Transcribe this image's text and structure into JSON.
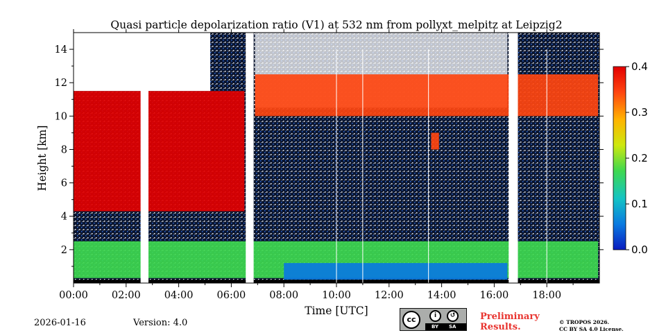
{
  "chart_data": {
    "type": "heatmap",
    "title": "Quasi particle depolarization ratio (V1) at 532 nm from pollyxt_melpitz at Leipzig2",
    "xlabel": "Time [UTC]",
    "ylabel": "Height [km]",
    "xlim_hours": [
      0,
      20
    ],
    "ylim_km": [
      0,
      15
    ],
    "x_ticks": [
      {
        "value": 0,
        "label": "00:00"
      },
      {
        "value": 2,
        "label": "02:00"
      },
      {
        "value": 4,
        "label": "04:00"
      },
      {
        "value": 6,
        "label": "06:00"
      },
      {
        "value": 8,
        "label": "08:00"
      },
      {
        "value": 10,
        "label": "10:00"
      },
      {
        "value": 12,
        "label": "12:00"
      },
      {
        "value": 14,
        "label": "14:00"
      },
      {
        "value": 16,
        "label": "16:00"
      },
      {
        "value": 18,
        "label": "18:00"
      }
    ],
    "y_ticks": [
      {
        "value": 2,
        "label": "2"
      },
      {
        "value": 4,
        "label": "4"
      },
      {
        "value": 6,
        "label": "6"
      },
      {
        "value": 8,
        "label": "8"
      },
      {
        "value": 10,
        "label": "10"
      },
      {
        "value": 12,
        "label": "12"
      },
      {
        "value": 14,
        "label": "14"
      }
    ],
    "colorbar": {
      "min": 0.0,
      "max": 0.4,
      "ticks": [
        {
          "value": 0.0,
          "label": "0.0"
        },
        {
          "value": 0.1,
          "label": "0.1"
        },
        {
          "value": 0.2,
          "label": "0.2"
        },
        {
          "value": 0.3,
          "label": "0.3"
        },
        {
          "value": 0.4,
          "label": "0.4"
        }
      ],
      "colors": [
        "#0a1cc0",
        "#0a7ae0",
        "#14c4c4",
        "#3ed850",
        "#cde80e",
        "#ffb400",
        "#ff4510",
        "#e30000"
      ]
    },
    "no_data_gaps_hours": [
      [
        2.55,
        2.85
      ],
      [
        6.55,
        6.85
      ],
      [
        16.55,
        16.9
      ]
    ],
    "thin_gaps_hours": [
      10.0,
      11.0,
      13.5,
      18.0
    ],
    "layers": [
      {
        "name": "boundary layer",
        "time_hours": [
          0,
          19.95
        ],
        "height_km": [
          0.3,
          2.5
        ],
        "value": 0.15
      },
      {
        "name": "mixed layer base",
        "time_hours": [
          8.0,
          16.5
        ],
        "height_km": [
          0.2,
          1.2
        ],
        "value": 0.06
      },
      {
        "name": "morning cirrus",
        "time_hours": [
          0,
          6.5
        ],
        "height_km": [
          4.3,
          11.5
        ],
        "value": 0.38
      },
      {
        "name": "afternoon cirrus",
        "time_hours": [
          6.9,
          19.95
        ],
        "height_km": [
          10.0,
          12.5
        ],
        "value": 0.36
      },
      {
        "name": "cirrus fall streak",
        "time_hours": [
          13.6,
          13.9
        ],
        "height_km": [
          8.0,
          9.0
        ],
        "value": 0.35
      }
    ]
  },
  "footer": {
    "date": "2026-01-16",
    "version": "Version: 4.0",
    "preliminary": [
      "Preliminary",
      "Results."
    ],
    "copyright": [
      "© TROPOS 2026.",
      "CC BY SA 4.0 License."
    ],
    "license_badge": {
      "main": "cc",
      "by": "BY",
      "sa": "SA"
    }
  },
  "icons": {
    "by_icon": "person-icon",
    "sa_icon": "share-alike-icon"
  }
}
